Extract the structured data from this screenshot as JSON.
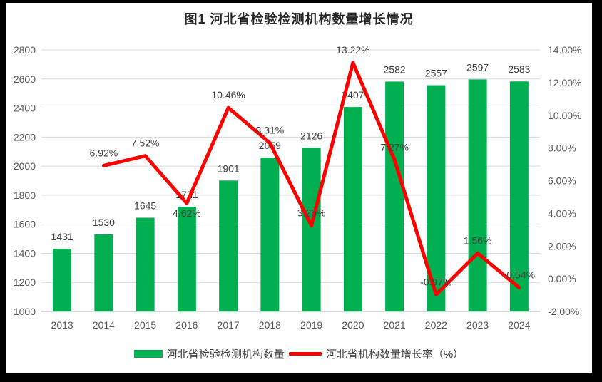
{
  "chart_data": {
    "type": "combo",
    "title": "图1  河北省检验检测机构数量增长情况",
    "categories": [
      "2013",
      "2014",
      "2015",
      "2016",
      "2017",
      "2018",
      "2019",
      "2020",
      "2021",
      "2022",
      "2023",
      "2024"
    ],
    "series": [
      {
        "name": "河北省检验检测机构数量",
        "type": "bar",
        "axis": "left",
        "color": "#00B050",
        "values": [
          1431,
          1530,
          1645,
          1721,
          1901,
          2059,
          2126,
          2407,
          2582,
          2557,
          2597,
          2583
        ],
        "labels": [
          "1431",
          "1530",
          "1645",
          "1721",
          "1901",
          "2059",
          "2126",
          "2407",
          "2582",
          "2557",
          "2597",
          "2583"
        ]
      },
      {
        "name": "河北省机构数量增长率（%）",
        "type": "line",
        "axis": "right",
        "color": "#FF0000",
        "values": [
          null,
          6.92,
          7.52,
          4.62,
          10.46,
          8.31,
          3.25,
          13.22,
          7.27,
          -0.97,
          1.56,
          -0.54
        ],
        "labels": [
          null,
          "6.92%",
          "7.52%",
          "4.62%",
          "10.46%",
          "8.31%",
          "3.25%",
          "13.22%",
          "7.27%",
          "-0.97%",
          "1.56%",
          "-0.54%"
        ],
        "label_placement": [
          null,
          "above",
          "above",
          "below",
          "above",
          "above",
          "above",
          "above",
          "above",
          "above",
          "above",
          "above"
        ]
      }
    ],
    "axes": {
      "left": {
        "min": 1000,
        "max": 2800,
        "step": 200,
        "ticks": [
          "1000",
          "1200",
          "1400",
          "1600",
          "1800",
          "2000",
          "2200",
          "2400",
          "2600",
          "2800"
        ]
      },
      "right": {
        "min": -2,
        "max": 14,
        "step": 2,
        "ticks": [
          "-2.00%",
          "0.00%",
          "2.00%",
          "4.00%",
          "6.00%",
          "8.00%",
          "10.00%",
          "12.00%",
          "14.00%"
        ]
      }
    },
    "grid": true,
    "legend_position": "bottom",
    "colors": {
      "bar": "#00B050",
      "line": "#FF0000",
      "gridline": "#D9D9D9",
      "axis_line": "#BFBFBF",
      "tick_text": "#595959",
      "data_label": "#404040",
      "frame": "#000000",
      "background": "#FFFFFF"
    }
  }
}
